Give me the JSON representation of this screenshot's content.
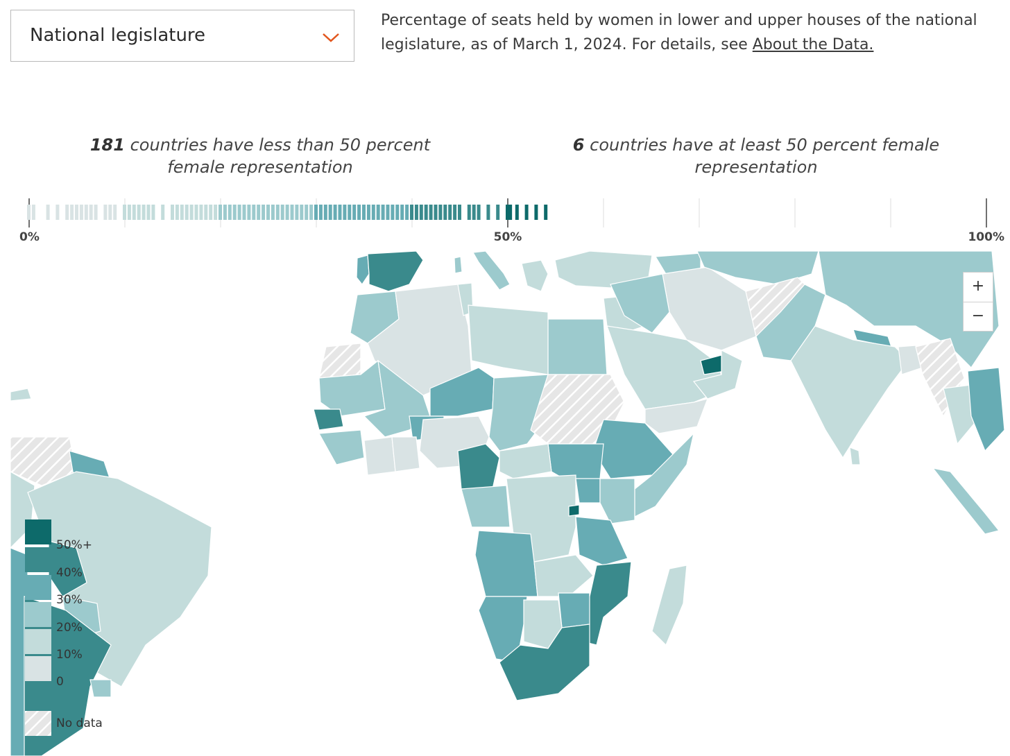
{
  "selector": {
    "value": "National legislature"
  },
  "description": {
    "text": "Percentage of seats held by women in lower and upper houses of the national legislature, as of March 1, 2024. For details, see ",
    "link": "About the Data."
  },
  "summary": {
    "left_count": "181",
    "left_text": " countries have less than 50 percent female representation",
    "right_count": "6",
    "right_text": " countries have at least 50 percent female representation"
  },
  "chart_data": {
    "type": "strip",
    "axis_ticks": [
      "0%",
      "50%",
      "100%"
    ],
    "xlim": [
      0,
      100
    ],
    "values": [
      0,
      0.5,
      2,
      3,
      4,
      4.5,
      5,
      5.5,
      6,
      6.5,
      7,
      8,
      8.5,
      9,
      10,
      10.5,
      11,
      11.5,
      12,
      12.5,
      13,
      14,
      15,
      15.5,
      16,
      16.5,
      17,
      17.5,
      18,
      18.5,
      19,
      19.5,
      20,
      20.5,
      21,
      21.5,
      22,
      22.5,
      23,
      23.5,
      24,
      24.5,
      25,
      25.5,
      26,
      26.5,
      27,
      27.5,
      28,
      28.5,
      29,
      29.5,
      30,
      30.5,
      31,
      31.5,
      32,
      32.5,
      33,
      33.5,
      34,
      34.5,
      35,
      35.5,
      36,
      36.5,
      37,
      37.5,
      38,
      38.5,
      39,
      39.5,
      40,
      40.5,
      41,
      41.5,
      42,
      42.5,
      43,
      43.5,
      44,
      44.5,
      45,
      46,
      46.5,
      47,
      48,
      49,
      50,
      50.3,
      51,
      52,
      53,
      54
    ]
  },
  "legend": {
    "items": [
      {
        "label": "50%+",
        "color": "#0d6a6a"
      },
      {
        "label": "40%",
        "color": "#3a8a8c"
      },
      {
        "label": "30%",
        "color": "#67acb4"
      },
      {
        "label": "20%",
        "color": "#9ccacd"
      },
      {
        "label": "10%",
        "color": "#c3dcdb"
      },
      {
        "label": "0",
        "color": "#d9e3e4"
      }
    ],
    "nodata": "No data"
  },
  "zoom": {
    "in": "+",
    "out": "−"
  },
  "colors": {
    "c0": "#d9e3e4",
    "c10": "#c3dcdb",
    "c20": "#9ccacd",
    "c30": "#67acb4",
    "c40": "#3a8a8c",
    "c50": "#0d6a6a",
    "accent": "#e2561d"
  }
}
